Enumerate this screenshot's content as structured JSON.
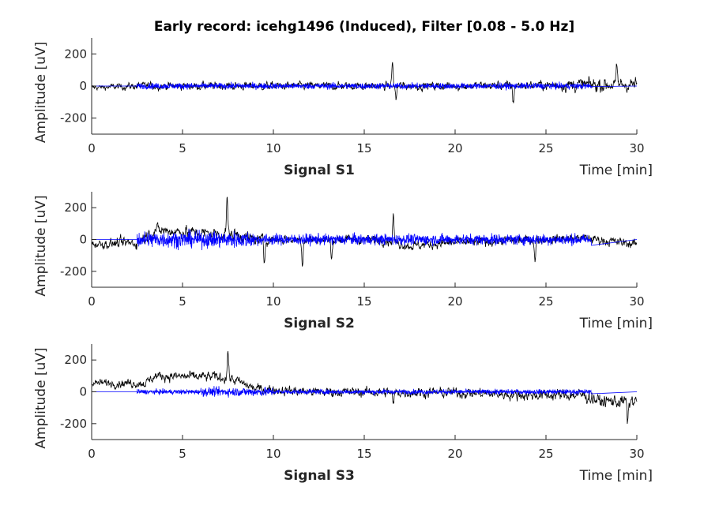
{
  "chart_data": {
    "type": "line",
    "title": "Early record: icehg1496 (Induced), Filter [0.08 - 5.0 Hz]",
    "xlim": [
      0,
      30
    ],
    "ylim": [
      -300,
      300
    ],
    "xticks": [
      "0",
      "5",
      "10",
      "15",
      "20",
      "25",
      "30"
    ],
    "yticks": [
      "-200",
      "0",
      "200"
    ],
    "grid": false,
    "subplots": [
      {
        "xlabel": "Signal S1",
        "xlabel_right": "Time [min]",
        "ylabel": "Amplitude [uV]",
        "raw": {
          "color": "#000000",
          "trend": [
            [
              0,
              -10
            ],
            [
              2.5,
              0
            ],
            [
              10,
              0
            ],
            [
              20,
              0
            ],
            [
              25,
              5
            ],
            [
              30,
              10
            ]
          ],
          "noise": [
            [
              0,
              15
            ],
            [
              2.5,
              25
            ],
            [
              15,
              25
            ],
            [
              25,
              30
            ],
            [
              27,
              45
            ],
            [
              30,
              45
            ]
          ],
          "spikes": [
            [
              16.55,
              150
            ],
            [
              16.75,
              -90
            ],
            [
              23.2,
              -110
            ],
            [
              28.9,
              100
            ]
          ]
        },
        "filtered": {
          "color": "#0000ff",
          "range": [
            2.5,
            27.5
          ],
          "amplitude": 22
        }
      },
      {
        "xlabel": "Signal S2",
        "xlabel_right": "Time [min]",
        "ylabel": "Amplitude [uV]",
        "raw": {
          "color": "#000000",
          "trend": [
            [
              0,
              -30
            ],
            [
              2.5,
              -20
            ],
            [
              3.5,
              60
            ],
            [
              6,
              40
            ],
            [
              8,
              30
            ],
            [
              9,
              0
            ],
            [
              16,
              0
            ],
            [
              17.5,
              -40
            ],
            [
              20,
              -20
            ],
            [
              27,
              10
            ],
            [
              30,
              -30
            ]
          ],
          "noise": [
            [
              0,
              25
            ],
            [
              2.5,
              40
            ],
            [
              8,
              40
            ],
            [
              10,
              30
            ],
            [
              30,
              30
            ]
          ],
          "spikes": [
            [
              7.45,
              240
            ],
            [
              9.5,
              -150
            ],
            [
              11.6,
              -160
            ],
            [
              13.2,
              -140
            ],
            [
              16.6,
              175
            ],
            [
              24.4,
              -140
            ]
          ]
        },
        "filtered": {
          "color": "#0000ff",
          "range": [
            2.5,
            27.5
          ],
          "amplitude": 40
        }
      },
      {
        "xlabel": "Signal S3",
        "xlabel_right": "Time [min]",
        "ylabel": "Amplitude [uV]",
        "raw": {
          "color": "#000000",
          "trend": [
            [
              0,
              55
            ],
            [
              3,
              55
            ],
            [
              3.5,
              100
            ],
            [
              7.5,
              90
            ],
            [
              9,
              20
            ],
            [
              12,
              0
            ],
            [
              20,
              -5
            ],
            [
              24,
              -20
            ],
            [
              27,
              -20
            ],
            [
              28,
              -60
            ],
            [
              30,
              -60
            ]
          ],
          "noise": [
            [
              0,
              25
            ],
            [
              7,
              35
            ],
            [
              10,
              30
            ],
            [
              24,
              35
            ],
            [
              30,
              45
            ]
          ],
          "spikes": [
            [
              7.5,
              170
            ],
            [
              16.6,
              -90
            ],
            [
              29.5,
              -150
            ]
          ]
        },
        "filtered": {
          "color": "#0000ff",
          "range": [
            2.5,
            27.5
          ],
          "amplitude": 18
        }
      }
    ]
  }
}
